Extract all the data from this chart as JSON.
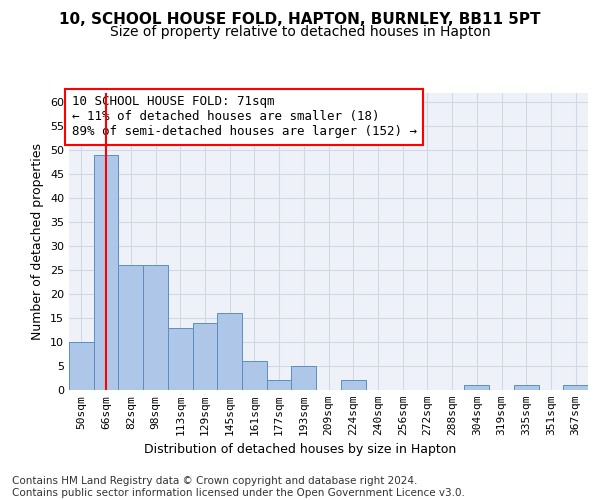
{
  "title": "10, SCHOOL HOUSE FOLD, HAPTON, BURNLEY, BB11 5PT",
  "subtitle": "Size of property relative to detached houses in Hapton",
  "xlabel": "Distribution of detached houses by size in Hapton",
  "ylabel": "Number of detached properties",
  "categories": [
    "50sqm",
    "66sqm",
    "82sqm",
    "98sqm",
    "113sqm",
    "129sqm",
    "145sqm",
    "161sqm",
    "177sqm",
    "193sqm",
    "209sqm",
    "224sqm",
    "240sqm",
    "256sqm",
    "272sqm",
    "288sqm",
    "304sqm",
    "319sqm",
    "335sqm",
    "351sqm",
    "367sqm"
  ],
  "values": [
    10,
    49,
    26,
    26,
    13,
    14,
    16,
    6,
    2,
    5,
    0,
    2,
    0,
    0,
    0,
    0,
    1,
    0,
    1,
    0,
    1
  ],
  "bar_color": "#aec6e8",
  "bar_edge_color": "#5a8fc2",
  "reference_line_x": 1,
  "reference_line_color": "red",
  "annotation_text": "10 SCHOOL HOUSE FOLD: 71sqm\n← 11% of detached houses are smaller (18)\n89% of semi-detached houses are larger (152) →",
  "annotation_box_color": "white",
  "annotation_box_edge_color": "red",
  "ylim": [
    0,
    62
  ],
  "yticks": [
    0,
    5,
    10,
    15,
    20,
    25,
    30,
    35,
    40,
    45,
    50,
    55,
    60
  ],
  "footer_text": "Contains HM Land Registry data © Crown copyright and database right 2024.\nContains public sector information licensed under the Open Government Licence v3.0.",
  "grid_color": "#d0d8e8",
  "background_color": "#eef2f8",
  "title_fontsize": 11,
  "subtitle_fontsize": 10,
  "axis_label_fontsize": 9,
  "tick_fontsize": 8,
  "annotation_fontsize": 9,
  "footer_fontsize": 7.5
}
